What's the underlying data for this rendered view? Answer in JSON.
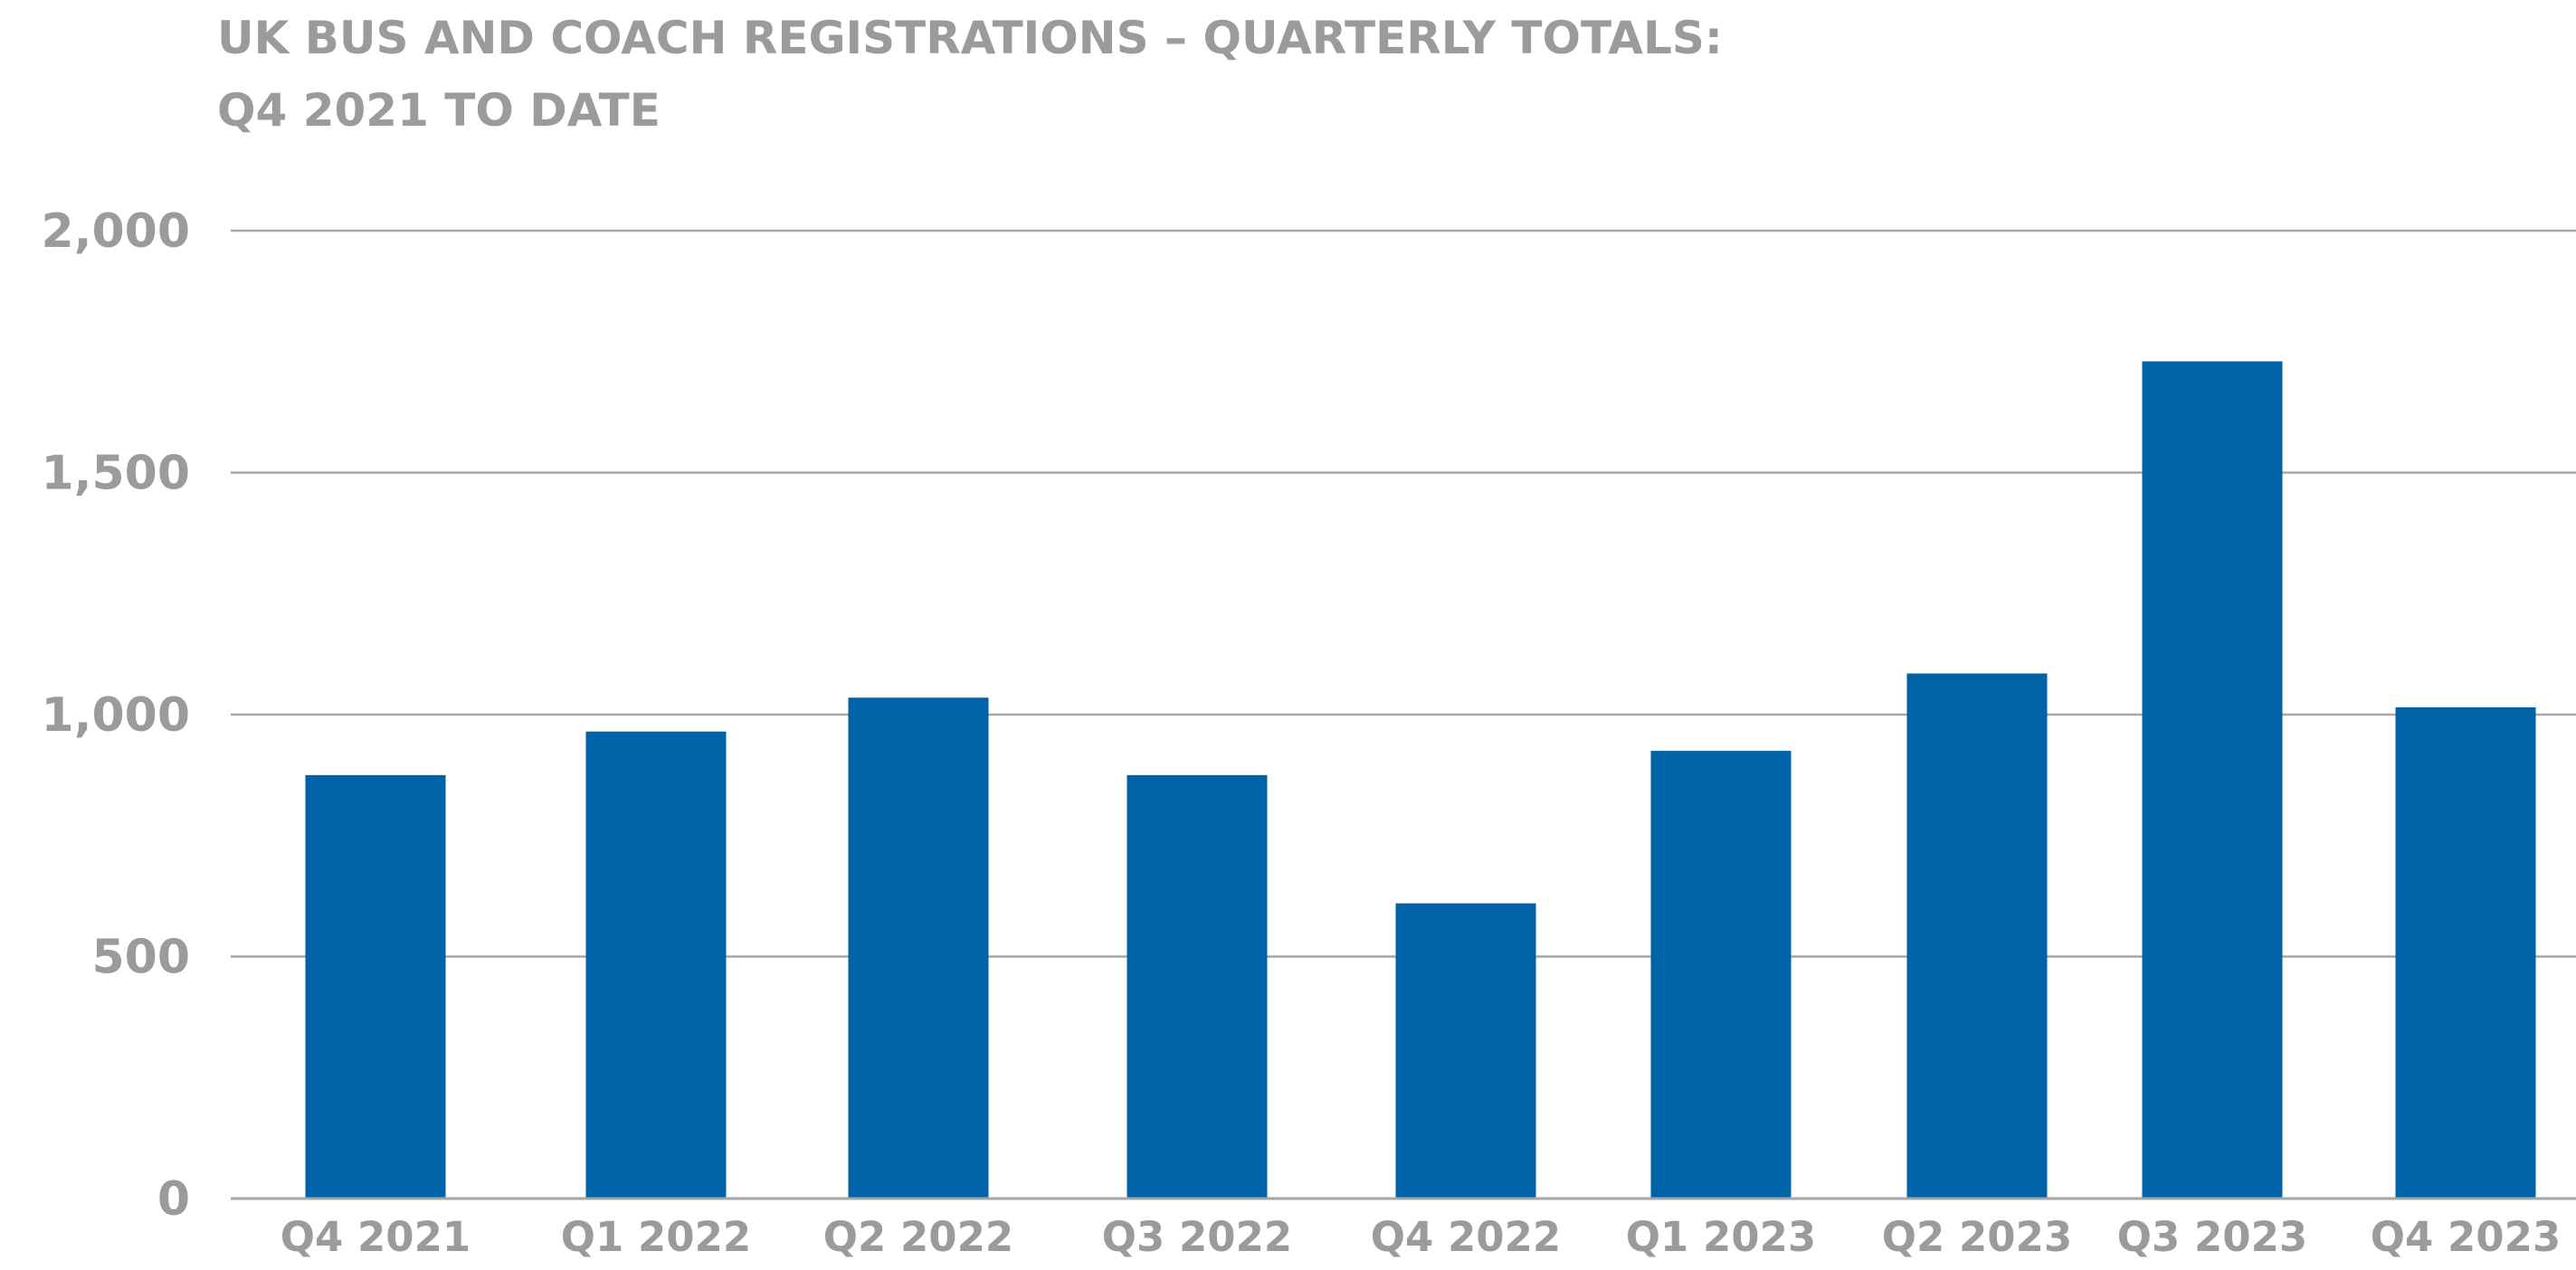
{
  "chart_data": {
    "type": "bar",
    "title": "UK BUS AND COACH REGISTRATIONS – QUARTERLY TOTALS:",
    "subtitle": "Q4 2021 TO DATE",
    "categories": [
      "Q4 2021",
      "Q1 2022",
      "Q2 2022",
      "Q3 2022",
      "Q4 2022",
      "Q1 2023",
      "Q2 2023",
      "Q3 2023",
      "Q4 2023"
    ],
    "values": [
      875,
      965,
      1035,
      875,
      610,
      925,
      1085,
      1730,
      1015
    ],
    "y_ticks": [
      0,
      500,
      1000,
      1500,
      2000
    ],
    "y_tick_labels": [
      "0",
      "500",
      "1,000",
      "1,500",
      "2,000"
    ],
    "ylim": [
      0,
      2000
    ],
    "xlabel": "",
    "ylabel": "",
    "grid": true,
    "legend": "none",
    "colors": {
      "bar": "#0063a8",
      "grid": "#a6a6a6",
      "text": "#9b9b9b"
    }
  }
}
